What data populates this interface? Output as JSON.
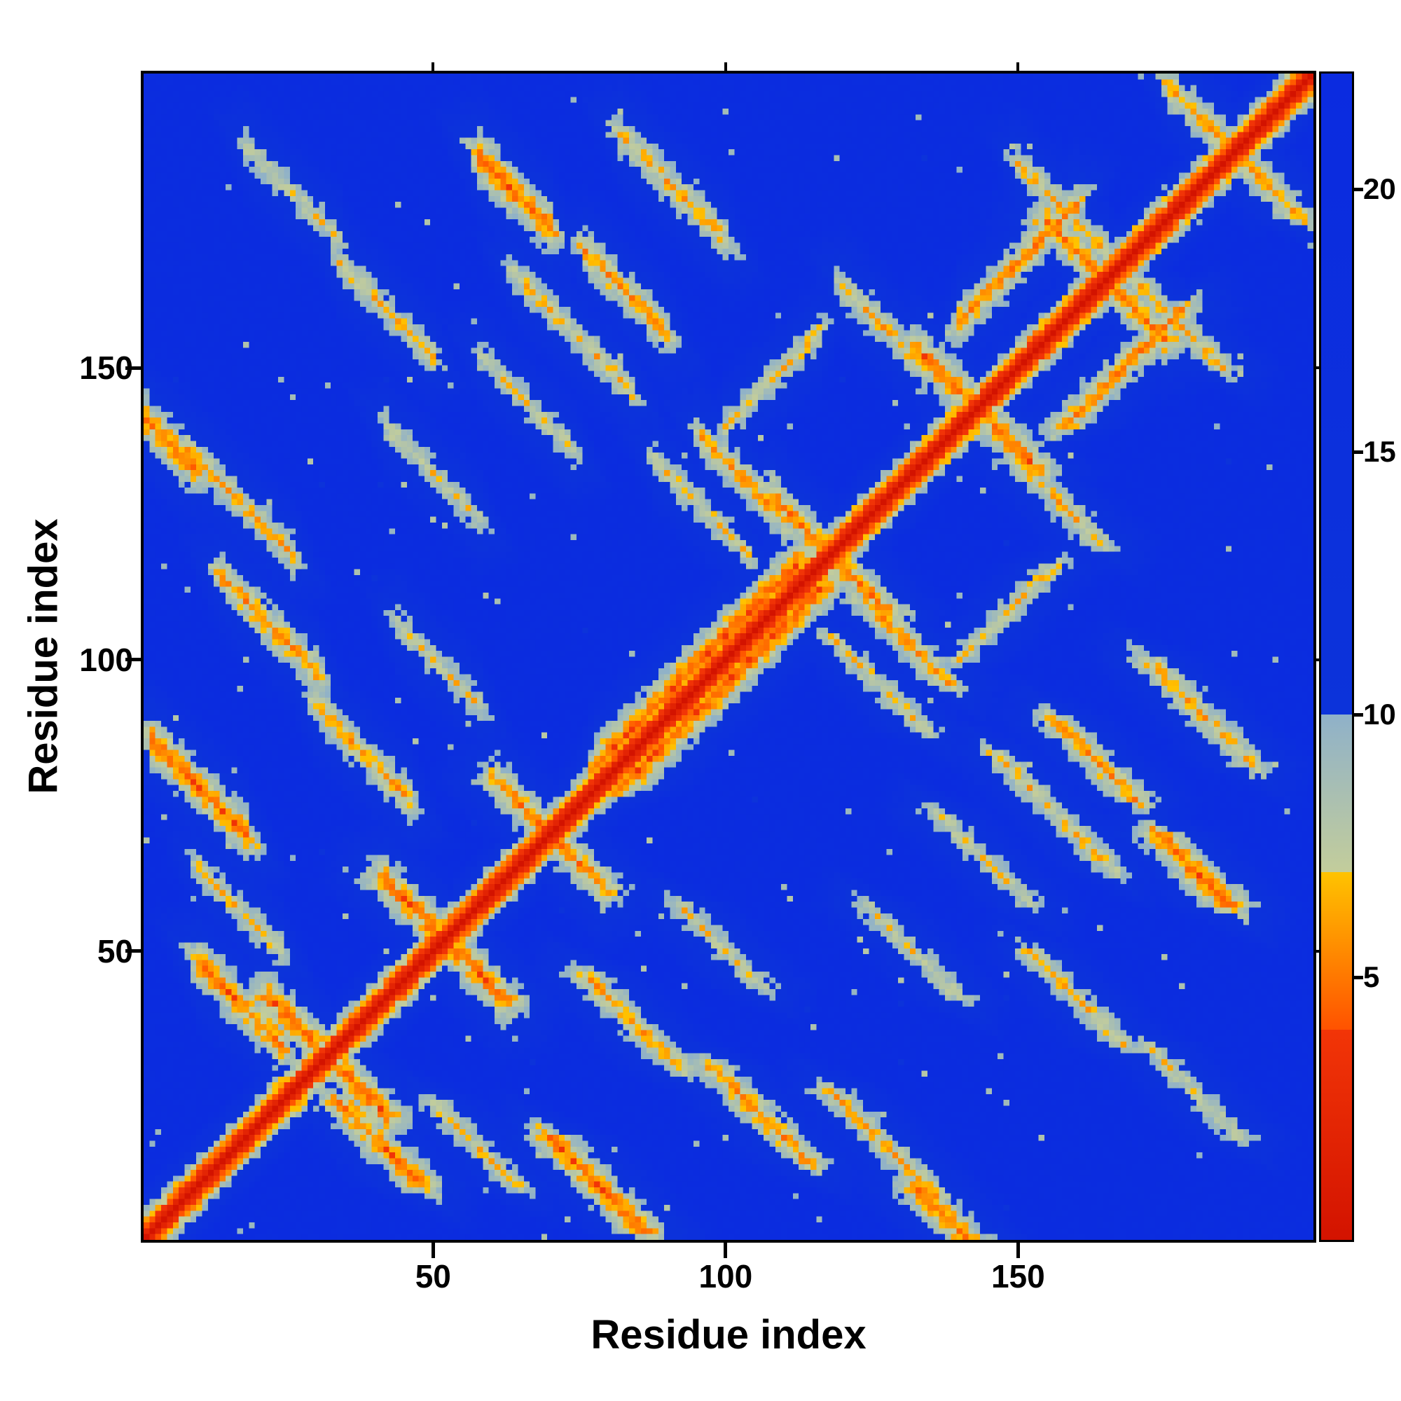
{
  "axes": {
    "xlabel": "Residue index",
    "ylabel": "Residue index",
    "x_ticks": [
      50,
      100,
      150
    ],
    "y_ticks": [
      50,
      100,
      150
    ],
    "x_range": [
      1,
      200
    ],
    "y_range": [
      1,
      200
    ]
  },
  "colorbar": {
    "ticks": [
      5,
      10,
      15,
      20
    ],
    "vmin": 0,
    "vmax": 22.2
  },
  "chart_data": {
    "type": "heatmap",
    "title": "",
    "xlabel": "Residue index",
    "ylabel": "Residue index",
    "x_range": [
      1,
      200
    ],
    "y_range": [
      1,
      200
    ],
    "n_residues": 200,
    "colorbar_ticks": [
      5,
      10,
      15,
      20
    ],
    "colormap": {
      "vmin": 0,
      "vmax": 22.2,
      "segments": [
        {
          "from": 0,
          "to": 4,
          "c0": "#d31300",
          "c1": "#f23507"
        },
        {
          "from": 4,
          "to": 7,
          "c0": "#ff5200",
          "c1": "#ffc300"
        },
        {
          "from": 7,
          "to": 10,
          "c0": "#c3cd9b",
          "c1": "#8fb1c9"
        },
        {
          "from": 10,
          "to": 22.2,
          "c0": "#0c33da",
          "c1": "#0b2be0"
        }
      ]
    },
    "background_value": 20,
    "diagonal": {
      "slope": 2.0
    },
    "feature_profile": {
      "perp_slope": 1.15,
      "end_slope": 1.6
    },
    "noise": {
      "seed": 7,
      "amplitude": 1.2,
      "diag_amplitude": 0.3,
      "speckle_prob": 0.0035,
      "speckle_range": [
        7.5,
        10.5
      ]
    },
    "contact_features": [
      {
        "t": "anti",
        "i": [
          22,
          42
        ],
        "j": [
          22,
          42
        ],
        "d": 4.8
      },
      {
        "t": "anti",
        "i": [
          42,
          62
        ],
        "j": [
          42,
          62
        ],
        "d": 4.8
      },
      {
        "t": "anti",
        "i": [
          61,
          79
        ],
        "j": [
          61,
          79
        ],
        "d": 5.2
      },
      {
        "t": "anti",
        "i": [
          10,
          24
        ],
        "j": [
          34,
          48
        ],
        "d": 5.0
      },
      {
        "t": "anti",
        "i": [
          2,
          18
        ],
        "j": [
          70,
          86
        ],
        "d": 4.8
      },
      {
        "t": "anti",
        "i": [
          10,
          24
        ],
        "j": [
          48,
          64
        ],
        "d": 6.8
      },
      {
        "t": "anti",
        "i": [
          30,
          46
        ],
        "j": [
          74,
          92
        ],
        "d": 6.0
      },
      {
        "t": "anti",
        "i": [
          44,
          58
        ],
        "j": [
          90,
          106
        ],
        "d": 7.0
      },
      {
        "t": "anti",
        "i": [
          14,
          30
        ],
        "j": [
          96,
          114
        ],
        "d": 5.5
      },
      {
        "t": "anti",
        "i": [
          8,
          26
        ],
        "j": [
          118,
          136
        ],
        "d": 6.3
      },
      {
        "t": "anti",
        "i": [
          1,
          9
        ],
        "j": [
          128,
          141
        ],
        "d": 5.0
      },
      {
        "t": "anti",
        "i": [
          18,
          34
        ],
        "j": [
          174,
          188
        ],
        "d": 7.3
      },
      {
        "t": "anti",
        "i": [
          34,
          50
        ],
        "j": [
          152,
          168
        ],
        "d": 6.8
      },
      {
        "t": "anti",
        "i": [
          42,
          58
        ],
        "j": [
          124,
          140
        ],
        "d": 7.2
      },
      {
        "t": "anti",
        "i": [
          58,
          70
        ],
        "j": [
          174,
          186
        ],
        "d": 4.6
      },
      {
        "t": "anti",
        "i": [
          58,
          74
        ],
        "j": [
          138,
          152
        ],
        "d": 7.2
      },
      {
        "t": "anti",
        "i": [
          64,
          84
        ],
        "j": [
          150,
          166
        ],
        "d": 6.6
      },
      {
        "t": "anti",
        "i": [
          76,
          90
        ],
        "j": [
          156,
          170
        ],
        "d": 5.8
      },
      {
        "t": "para",
        "i": [
          78,
          112
        ],
        "j": [
          82,
          116
        ],
        "d": 4.4
      },
      {
        "t": "anti",
        "i": [
          108,
          128
        ],
        "j": [
          108,
          128
        ],
        "d": 5.2
      },
      {
        "t": "anti",
        "i": [
          96,
          110
        ],
        "j": [
          124,
          138
        ],
        "d": 5.8
      },
      {
        "t": "para",
        "i": [
          100,
          116
        ],
        "j": [
          140,
          156
        ],
        "d": 6.8
      },
      {
        "t": "anti",
        "i": [
          120,
          134
        ],
        "j": [
          150,
          164
        ],
        "d": 6.4
      },
      {
        "t": "anti",
        "i": [
          133,
          153
        ],
        "j": [
          133,
          153
        ],
        "d": 4.9
      },
      {
        "t": "anti",
        "i": [
          155,
          175
        ],
        "j": [
          155,
          175
        ],
        "d": 5.3
      },
      {
        "t": "para",
        "i": [
          140,
          160
        ],
        "j": [
          158,
          178
        ],
        "d": 5.4
      },
      {
        "t": "anti",
        "i": [
          150,
          165
        ],
        "j": [
          170,
          185
        ],
        "d": 6.5
      },
      {
        "t": "anti",
        "i": [
          176,
          190
        ],
        "j": [
          184,
          198
        ],
        "d": 5.8
      },
      {
        "t": "anti",
        "i": [
          82,
          100
        ],
        "j": [
          174,
          190
        ],
        "d": 6.2
      },
      {
        "t": "anti",
        "i": [
          88,
          104
        ],
        "j": [
          118,
          134
        ],
        "d": 6.9
      }
    ]
  }
}
